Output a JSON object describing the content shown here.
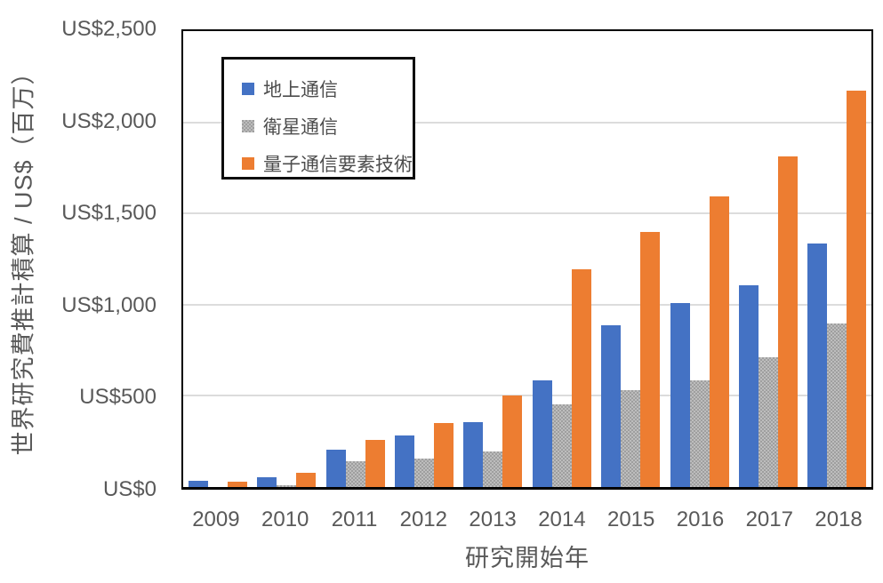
{
  "chart_data": {
    "type": "bar",
    "title": "",
    "xlabel": "研究開始年",
    "ylabel": "世界研究費推計積算 / US$（百万）",
    "categories": [
      "2009",
      "2010",
      "2011",
      "2012",
      "2013",
      "2014",
      "2015",
      "2016",
      "2017",
      "2018"
    ],
    "series": [
      {
        "id": "terrestrial",
        "name": "地上通信",
        "color": "#4472C4",
        "values": [
          35,
          55,
          205,
          285,
          355,
          585,
          885,
          1010,
          1105,
          1335
        ]
      },
      {
        "id": "satellite",
        "name": "衛星通信",
        "color": "#A6A6A6",
        "pattern": "checker",
        "values": [
          0,
          12,
          140,
          155,
          195,
          455,
          530,
          585,
          710,
          895
        ]
      },
      {
        "id": "quantum",
        "name": "量子通信要素技術",
        "color": "#ED7D31",
        "values": [
          30,
          80,
          260,
          350,
          500,
          1195,
          1400,
          1595,
          1815,
          2175
        ]
      }
    ],
    "ylim": [
      0,
      2500
    ],
    "ytick_step": 500,
    "ytick_labels": [
      "US$0",
      "US$500",
      "US$1,000",
      "US$1,500",
      "US$2,000",
      "US$2,500"
    ],
    "grid": true,
    "gridline_values": [
      500,
      1000,
      1500,
      2000
    ],
    "legend_position": "top-left-inside"
  }
}
